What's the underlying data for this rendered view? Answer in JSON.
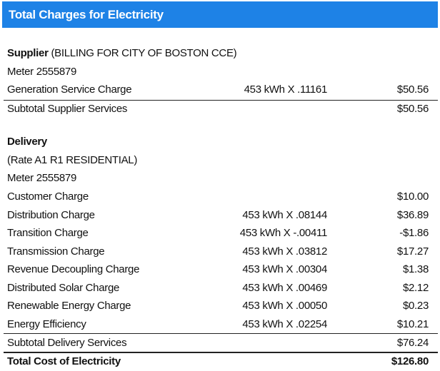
{
  "header": {
    "title": "Total Charges for Electricity"
  },
  "supplier": {
    "label": "Supplier",
    "name": "(BILLING FOR CITY OF BOSTON CCE)",
    "meter": "Meter 2555879",
    "rows": [
      {
        "label": "Generation Service Charge",
        "usage": "453 kWh X .11161",
        "amount": "$50.56"
      }
    ],
    "subtotal": {
      "label": "Subtotal Supplier Services",
      "amount": "$50.56"
    }
  },
  "delivery": {
    "label": "Delivery",
    "rate": "(Rate A1 R1 RESIDENTIAL)",
    "meter": "Meter 2555879",
    "rows": [
      {
        "label": "Customer Charge",
        "amount": "$10.00"
      },
      {
        "label": "Distribution Charge",
        "usage": "453 kWh X .08144",
        "amount": "$36.89"
      },
      {
        "label": "Transition Charge",
        "usage": "453 kWh X -.00411",
        "amount": "-$1.86"
      },
      {
        "label": "Transmission Charge",
        "usage": "453 kWh X .03812",
        "amount": "$17.27"
      },
      {
        "label": "Revenue Decoupling Charge",
        "usage": "453 kWh X .00304",
        "amount": "$1.38"
      },
      {
        "label": "Distributed Solar Charge",
        "usage": "453 kWh X .00469",
        "amount": "$2.12"
      },
      {
        "label": "Renewable Energy Charge",
        "usage": "453 kWh X .00050",
        "amount": "$0.23"
      },
      {
        "label": "Energy Efficiency",
        "usage": "453 kWh X .02254",
        "amount": "$10.21"
      }
    ],
    "subtotal": {
      "label": "Subtotal Delivery Services",
      "amount": "$76.24"
    }
  },
  "total": {
    "label": "Total Cost of Electricity",
    "amount": "$126.80"
  }
}
